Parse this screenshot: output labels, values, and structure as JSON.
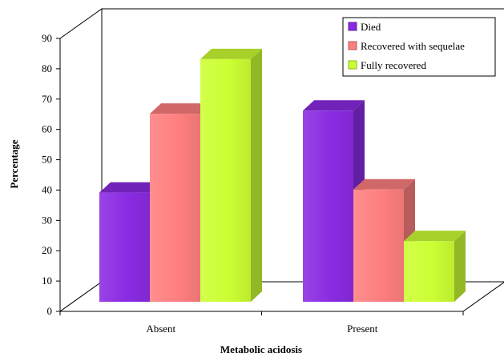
{
  "chart_data": {
    "type": "bar",
    "title": "",
    "xlabel": "Metabolic acidosis",
    "ylabel": "Percentage",
    "categories": [
      "Absent",
      "Present"
    ],
    "ylim": [
      0,
      90
    ],
    "yticks": [
      0,
      10,
      20,
      30,
      40,
      50,
      60,
      70,
      80,
      90
    ],
    "grid": false,
    "legend_position": "top-right",
    "three_d": true,
    "series": [
      {
        "name": "Died",
        "values": [
          36,
          63
        ],
        "color": "#8a2be2"
      },
      {
        "name": "Recovered with sequelae",
        "values": [
          62,
          37
        ],
        "color": "#ff7f7f"
      },
      {
        "name": "Fully recovered",
        "values": [
          80,
          20
        ],
        "color": "#ccff33"
      }
    ]
  }
}
